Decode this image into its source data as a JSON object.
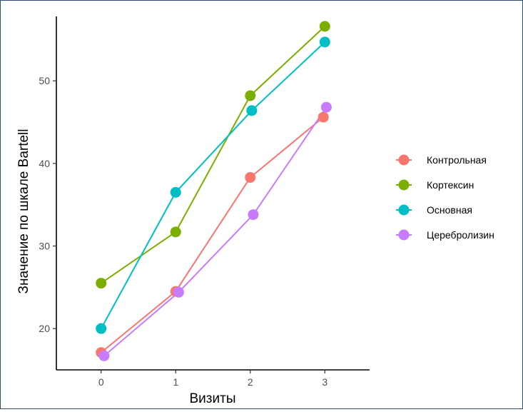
{
  "chart_data": {
    "type": "line",
    "x": [
      0,
      1,
      2,
      3
    ],
    "xlabel": "Визиты",
    "ylabel": "Значение по шкале Bartell",
    "xlim": [
      -0.6,
      3.6
    ],
    "ylim": [
      15,
      57.8
    ],
    "x_ticks": [
      "0",
      "1",
      "2",
      "3"
    ],
    "y_ticks": [
      "20",
      "30",
      "40",
      "50"
    ],
    "grid": false,
    "legend_position": "right",
    "series": [
      {
        "name": "Контрольная",
        "color": "#F8766D",
        "values": [
          17.1,
          24.5,
          38.3,
          45.6
        ],
        "x_offset": [
          0,
          0,
          0,
          -0.02
        ]
      },
      {
        "name": "Кортексин",
        "color": "#7CAE00",
        "values": [
          25.5,
          31.7,
          48.2,
          56.6
        ],
        "x_offset": [
          0,
          0,
          0,
          0
        ]
      },
      {
        "name": "Основная",
        "color": "#00BFC4",
        "values": [
          20.0,
          36.5,
          46.4,
          54.7
        ],
        "x_offset": [
          0,
          0,
          0.02,
          0
        ]
      },
      {
        "name": "Церебролизин",
        "color": "#C77CFF",
        "values": [
          16.7,
          24.4,
          33.8,
          46.8
        ],
        "x_offset": [
          0.04,
          0.04,
          0.04,
          0.02
        ]
      }
    ]
  }
}
